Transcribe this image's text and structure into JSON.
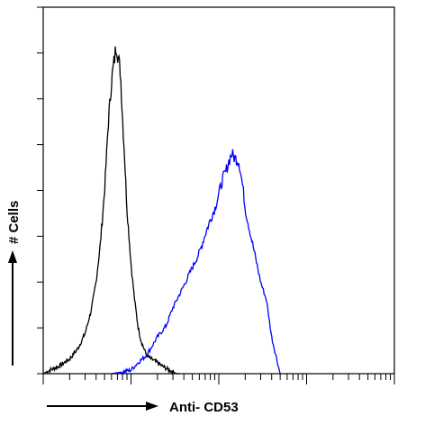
{
  "chart_data": {
    "type": "area",
    "title": "",
    "xlabel": "Anti- CD53",
    "ylabel": "# Cells",
    "xscale": "log",
    "xlim": [
      1,
      10000
    ],
    "ylim": [
      0,
      100
    ],
    "grid": false,
    "legend": "none",
    "series": [
      {
        "color": "#000000",
        "x": [
          1,
          1.2,
          1.5,
          2,
          2.5,
          3,
          3.5,
          4,
          4.5,
          5,
          5.5,
          6,
          6.5,
          6.8,
          7.2,
          7.6,
          8,
          8.5,
          9,
          10,
          11,
          12,
          13,
          14,
          15,
          17,
          20,
          23,
          27,
          30,
          33,
          36
        ],
        "y": [
          0,
          1,
          2,
          4,
          7,
          11,
          17,
          25,
          36,
          50,
          68,
          80,
          86,
          90,
          86,
          82,
          70,
          58,
          45,
          30,
          20,
          13,
          9,
          7,
          5,
          4,
          3,
          2,
          1,
          0.5,
          0,
          0
        ]
      },
      {
        "color": "#0000ff",
        "x": [
          6,
          8,
          10,
          12,
          15,
          20,
          25,
          30,
          40,
          50,
          60,
          70,
          80,
          90,
          100,
          110,
          120,
          130,
          140,
          150,
          170,
          190,
          200,
          230,
          260,
          300,
          350,
          400,
          500
        ],
        "y": [
          0,
          0.5,
          1,
          3,
          5,
          10,
          13,
          18,
          24,
          29,
          33,
          38,
          42,
          45,
          49,
          53,
          55,
          58,
          60,
          59,
          58,
          50,
          45,
          38,
          32,
          25,
          20,
          10,
          0
        ]
      }
    ]
  }
}
